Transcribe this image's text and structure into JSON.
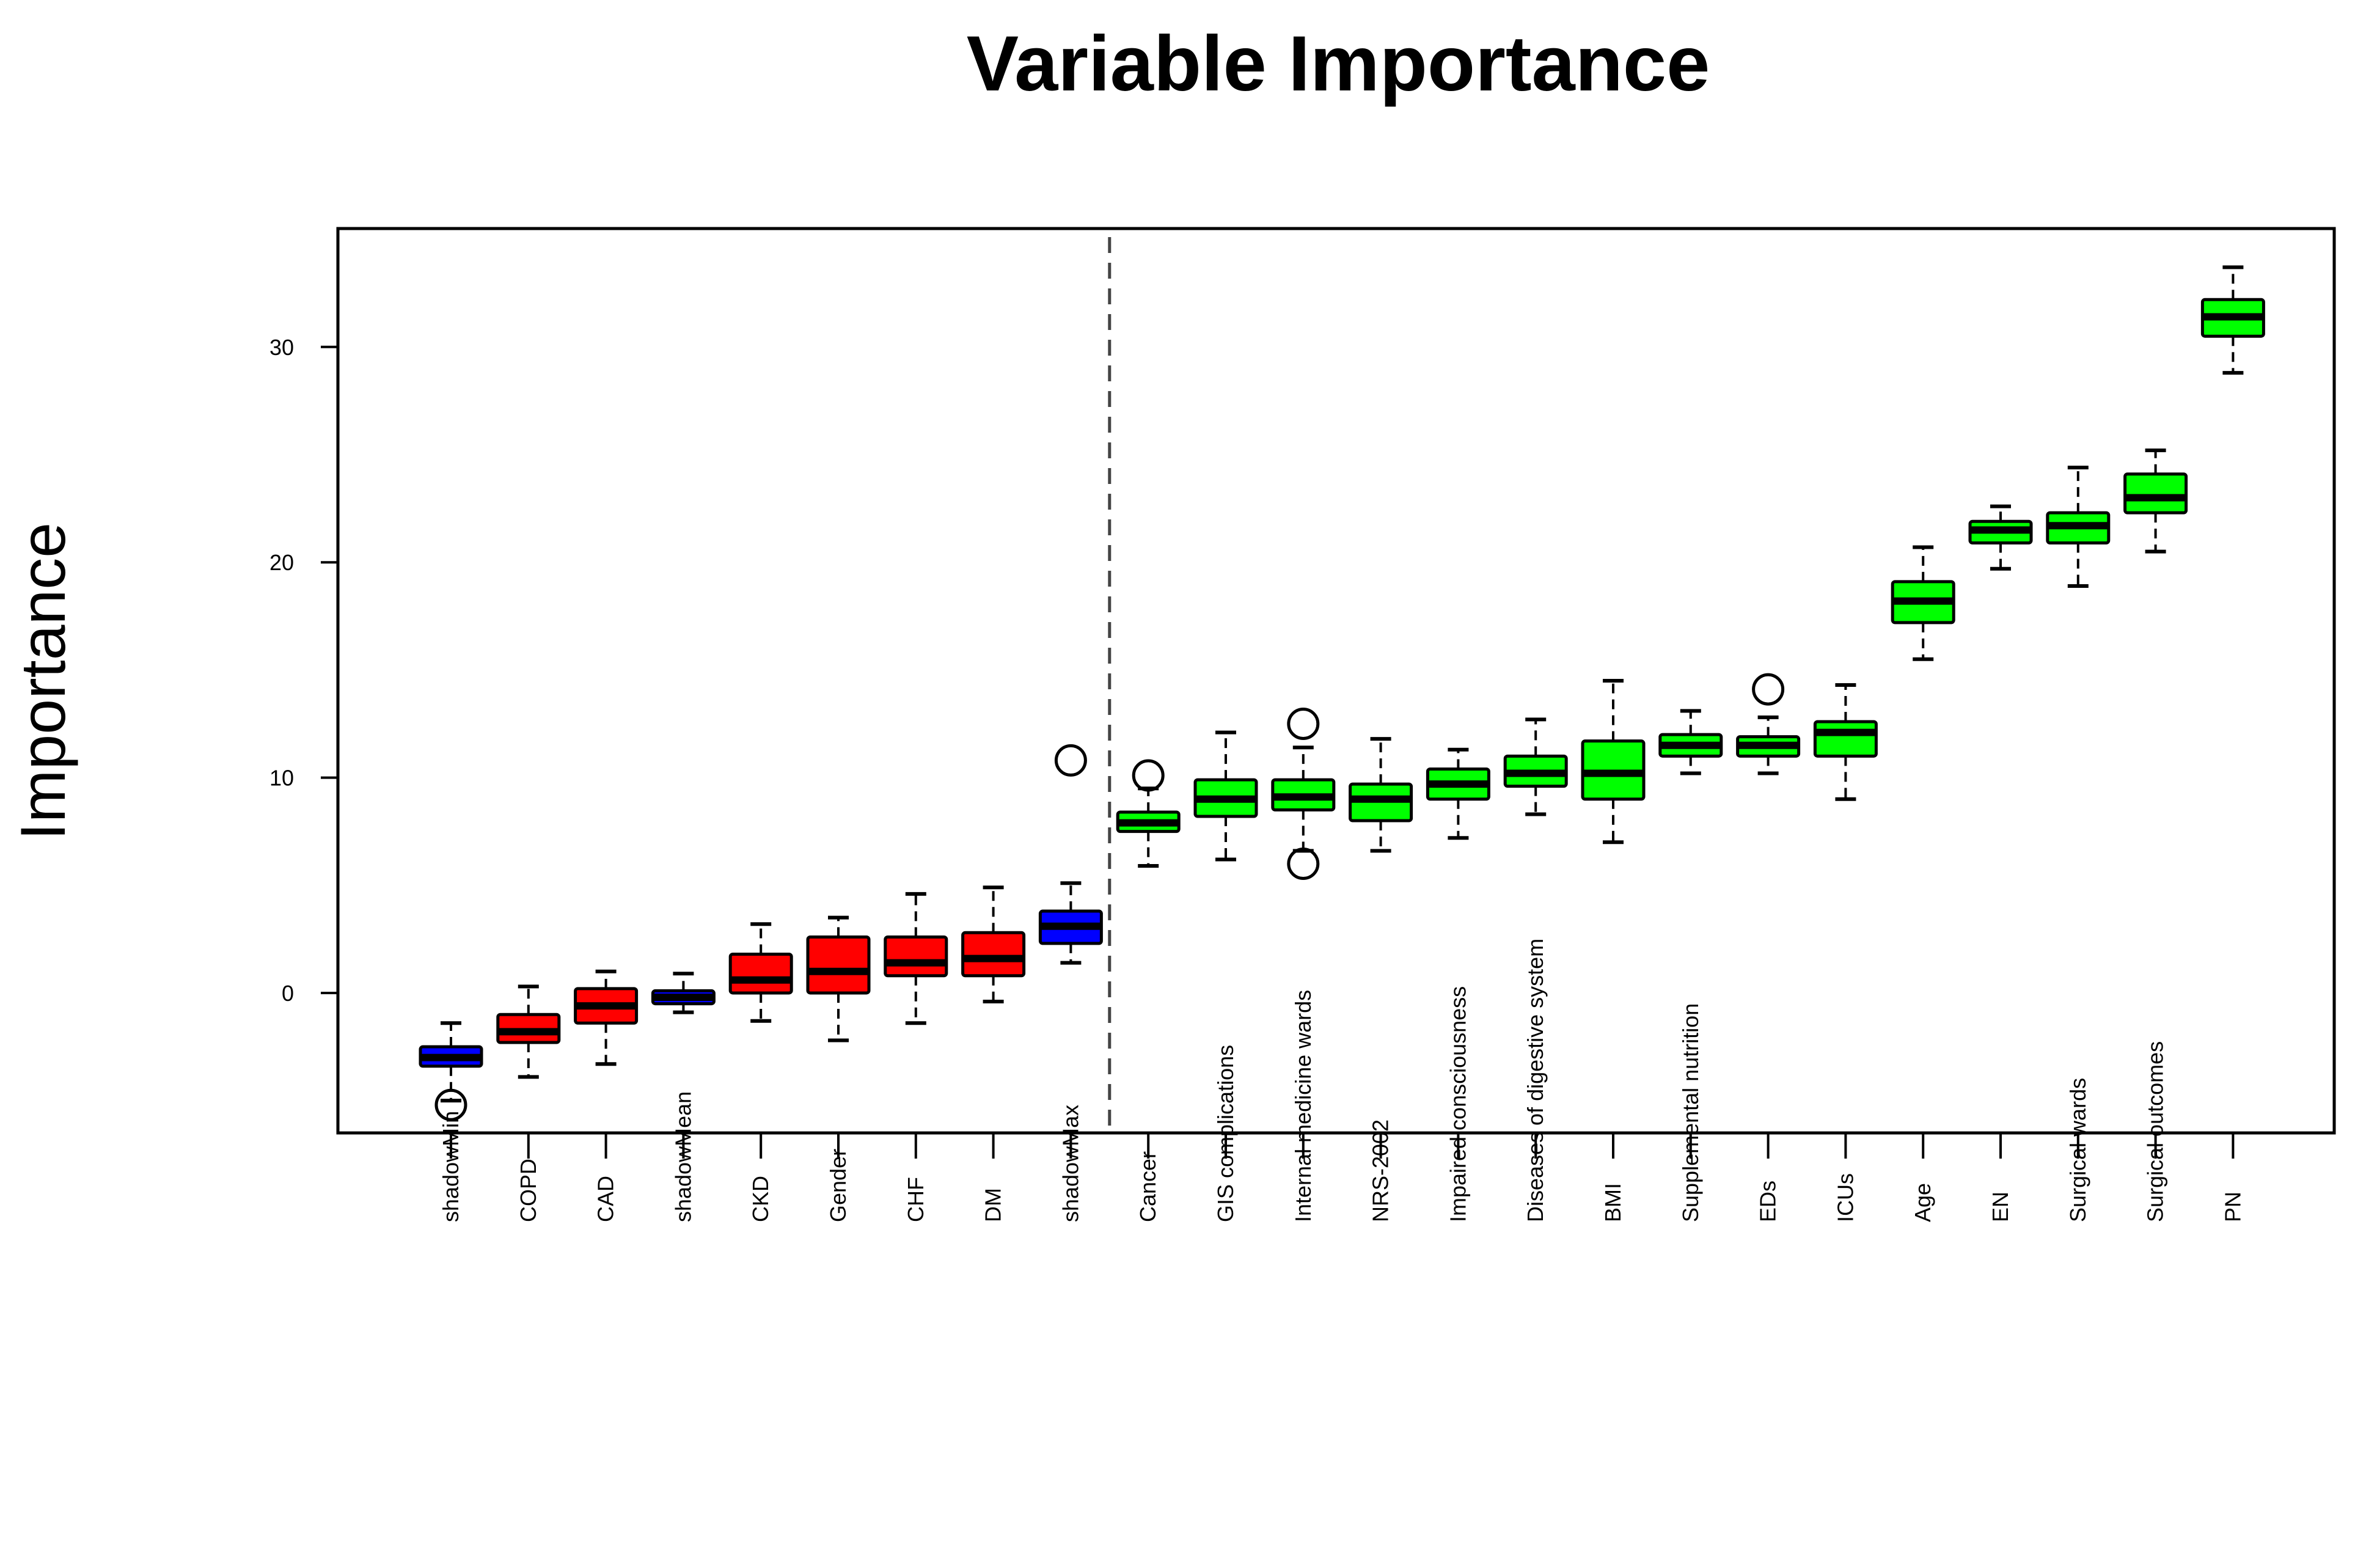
{
  "chart_data": {
    "type": "boxplot",
    "title": "Variable Importance",
    "xlabel": "",
    "ylabel": "Importance",
    "ylim": [
      -6.5,
      35.5
    ],
    "yticks": [
      0,
      10,
      20,
      30
    ],
    "ytick_labels": [
      "0",
      "10",
      "20",
      "30"
    ],
    "categories": [
      "shadowMin",
      "COPD",
      "CAD",
      "shadowMean",
      "CKD",
      "Gender",
      "CHF",
      "DM",
      "shadowMax",
      "Cancer",
      "GIS complications",
      "Internal medicine wards",
      "NRS-2002",
      "Impaired consciousness",
      "Diseases of digestive system",
      "BMI",
      "Supplemental nutrition",
      "EDs",
      "ICUs",
      "Age",
      "EN",
      "Surgical wards",
      "Surgical outcomes",
      "PN"
    ],
    "status": [
      "shadow",
      "rejected",
      "rejected",
      "shadow",
      "rejected",
      "rejected",
      "rejected",
      "rejected",
      "shadow",
      "confirmed",
      "confirmed",
      "confirmed",
      "confirmed",
      "confirmed",
      "confirmed",
      "confirmed",
      "confirmed",
      "confirmed",
      "confirmed",
      "confirmed",
      "confirmed",
      "confirmed",
      "confirmed",
      "confirmed"
    ],
    "status_colors": {
      "shadow": "#0000ff",
      "rejected": "#ff0000",
      "confirmed": "#00ff00"
    },
    "boxes": [
      {
        "whisker_low": -5.0,
        "q1": -3.4,
        "median": -3.0,
        "q3": -2.5,
        "whisker_high": -1.4,
        "outliers": [
          -5.2
        ]
      },
      {
        "whisker_low": -3.9,
        "q1": -2.3,
        "median": -1.8,
        "q3": -1.0,
        "whisker_high": 0.3,
        "outliers": []
      },
      {
        "whisker_low": -3.3,
        "q1": -1.4,
        "median": -0.6,
        "q3": 0.2,
        "whisker_high": 1.0,
        "outliers": []
      },
      {
        "whisker_low": -0.9,
        "q1": -0.5,
        "median": -0.2,
        "q3": 0.1,
        "whisker_high": 0.9,
        "outliers": []
      },
      {
        "whisker_low": -1.3,
        "q1": 0.0,
        "median": 0.6,
        "q3": 1.8,
        "whisker_high": 3.2,
        "outliers": []
      },
      {
        "whisker_low": -2.2,
        "q1": 0.0,
        "median": 1.0,
        "q3": 2.6,
        "whisker_high": 3.5,
        "outliers": []
      },
      {
        "whisker_low": -1.4,
        "q1": 0.8,
        "median": 1.4,
        "q3": 2.6,
        "whisker_high": 4.6,
        "outliers": []
      },
      {
        "whisker_low": -0.4,
        "q1": 0.8,
        "median": 1.6,
        "q3": 2.8,
        "whisker_high": 4.9,
        "outliers": []
      },
      {
        "whisker_low": 1.4,
        "q1": 2.3,
        "median": 3.1,
        "q3": 3.8,
        "whisker_high": 5.1,
        "outliers": [
          10.8
        ]
      },
      {
        "whisker_low": 5.9,
        "q1": 7.5,
        "median": 7.9,
        "q3": 8.4,
        "whisker_high": 9.5,
        "outliers": [
          10.1
        ]
      },
      {
        "whisker_low": 6.2,
        "q1": 8.2,
        "median": 9.0,
        "q3": 9.9,
        "whisker_high": 12.1,
        "outliers": []
      },
      {
        "whisker_low": 6.6,
        "q1": 8.5,
        "median": 9.1,
        "q3": 9.9,
        "whisker_high": 11.4,
        "outliers": [
          12.5,
          6.0
        ]
      },
      {
        "whisker_low": 6.6,
        "q1": 8.0,
        "median": 9.0,
        "q3": 9.7,
        "whisker_high": 11.8,
        "outliers": []
      },
      {
        "whisker_low": 7.2,
        "q1": 9.0,
        "median": 9.7,
        "q3": 10.4,
        "whisker_high": 11.3,
        "outliers": []
      },
      {
        "whisker_low": 8.3,
        "q1": 9.6,
        "median": 10.2,
        "q3": 11.0,
        "whisker_high": 12.7,
        "outliers": []
      },
      {
        "whisker_low": 7.0,
        "q1": 9.0,
        "median": 10.2,
        "q3": 11.7,
        "whisker_high": 14.5,
        "outliers": []
      },
      {
        "whisker_low": 10.2,
        "q1": 11.0,
        "median": 11.5,
        "q3": 12.0,
        "whisker_high": 13.1,
        "outliers": []
      },
      {
        "whisker_low": 10.2,
        "q1": 11.0,
        "median": 11.5,
        "q3": 11.9,
        "whisker_high": 12.8,
        "outliers": [
          14.1
        ]
      },
      {
        "whisker_low": 9.0,
        "q1": 11.0,
        "median": 12.1,
        "q3": 12.6,
        "whisker_high": 14.3,
        "outliers": []
      },
      {
        "whisker_low": 15.5,
        "q1": 17.2,
        "median": 18.2,
        "q3": 19.1,
        "whisker_high": 20.7,
        "outliers": []
      },
      {
        "whisker_low": 19.7,
        "q1": 20.9,
        "median": 21.5,
        "q3": 21.9,
        "whisker_high": 22.6,
        "outliers": []
      },
      {
        "whisker_low": 18.9,
        "q1": 20.9,
        "median": 21.7,
        "q3": 22.3,
        "whisker_high": 24.4,
        "outliers": []
      },
      {
        "whisker_low": 20.5,
        "q1": 22.3,
        "median": 23.0,
        "q3": 24.1,
        "whisker_high": 25.2,
        "outliers": []
      },
      {
        "whisker_low": 28.8,
        "q1": 30.5,
        "median": 31.4,
        "q3": 32.2,
        "whisker_high": 33.7,
        "outliers": []
      }
    ],
    "reference_line": {
      "style": "dashed",
      "between": [
        "shadowMax",
        "Cancer"
      ]
    },
    "grid": false
  }
}
